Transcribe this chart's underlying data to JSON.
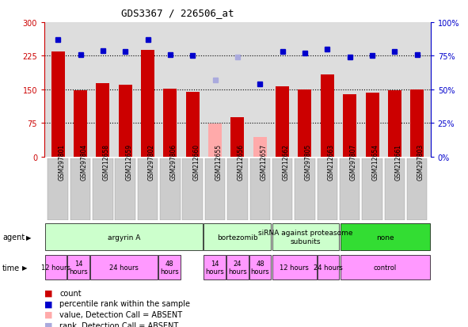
{
  "title": "GDS3367 / 226506_at",
  "samples": [
    "GSM297801",
    "GSM297804",
    "GSM212658",
    "GSM212659",
    "GSM297802",
    "GSM297806",
    "GSM212660",
    "GSM212655",
    "GSM212656",
    "GSM212657",
    "GSM212662",
    "GSM297805",
    "GSM212663",
    "GSM297807",
    "GSM212654",
    "GSM212661",
    "GSM297803"
  ],
  "count_values": [
    235,
    148,
    163,
    160,
    238,
    152,
    145,
    73,
    88,
    43,
    157,
    150,
    183,
    140,
    142,
    148,
    150
  ],
  "count_absent": [
    false,
    false,
    false,
    false,
    false,
    false,
    false,
    true,
    false,
    true,
    false,
    false,
    false,
    false,
    false,
    false,
    false
  ],
  "rank_values": [
    87,
    76,
    79,
    78,
    87,
    76,
    75,
    57,
    74,
    54,
    78,
    77,
    80,
    74,
    75,
    78,
    76
  ],
  "rank_absent": [
    false,
    false,
    false,
    false,
    false,
    false,
    false,
    true,
    true,
    false,
    false,
    false,
    false,
    false,
    false,
    false,
    false
  ],
  "ylim_left": [
    0,
    300
  ],
  "ylim_right": [
    0,
    100
  ],
  "yticks_left": [
    0,
    75,
    150,
    225,
    300
  ],
  "yticks_right": [
    0,
    25,
    50,
    75,
    100
  ],
  "agent_groups": [
    {
      "label": "argyrin A",
      "start": 0,
      "end": 7,
      "color": "#ccffcc"
    },
    {
      "label": "bortezomib",
      "start": 7,
      "end": 10,
      "color": "#ccffcc"
    },
    {
      "label": "siRNA against proteasome\nsubunits",
      "start": 10,
      "end": 13,
      "color": "#ccffcc"
    },
    {
      "label": "none",
      "start": 13,
      "end": 17,
      "color": "#33dd33"
    }
  ],
  "time_groups": [
    {
      "label": "12 hours",
      "start": 0,
      "end": 1,
      "color": "#ff99ff"
    },
    {
      "label": "14\nhours",
      "start": 1,
      "end": 2,
      "color": "#ff99ff"
    },
    {
      "label": "24 hours",
      "start": 2,
      "end": 5,
      "color": "#ff99ff"
    },
    {
      "label": "48\nhours",
      "start": 5,
      "end": 6,
      "color": "#ff99ff"
    },
    {
      "label": "14\nhours",
      "start": 7,
      "end": 8,
      "color": "#ff99ff"
    },
    {
      "label": "24\nhours",
      "start": 8,
      "end": 9,
      "color": "#ff99ff"
    },
    {
      "label": "48\nhours",
      "start": 9,
      "end": 10,
      "color": "#ff99ff"
    },
    {
      "label": "12 hours",
      "start": 10,
      "end": 12,
      "color": "#ff99ff"
    },
    {
      "label": "24 hours",
      "start": 12,
      "end": 13,
      "color": "#ff99ff"
    },
    {
      "label": "control",
      "start": 13,
      "end": 17,
      "color": "#ff99ff"
    }
  ],
  "bar_color_present": "#cc0000",
  "bar_color_absent": "#ffaaaa",
  "rank_color_present": "#0000cc",
  "rank_color_absent": "#aaaadd",
  "bg_color": "#ffffff",
  "plot_bg_color": "#dddddd",
  "left_tick_color": "#cc0000",
  "right_tick_color": "#0000cc",
  "grid_color": "black",
  "bar_width": 0.6,
  "label_fontsize": 5.5,
  "agent_fontsize": 6.5,
  "time_fontsize": 6.0,
  "legend_fontsize": 7.0,
  "title_fontsize": 9
}
